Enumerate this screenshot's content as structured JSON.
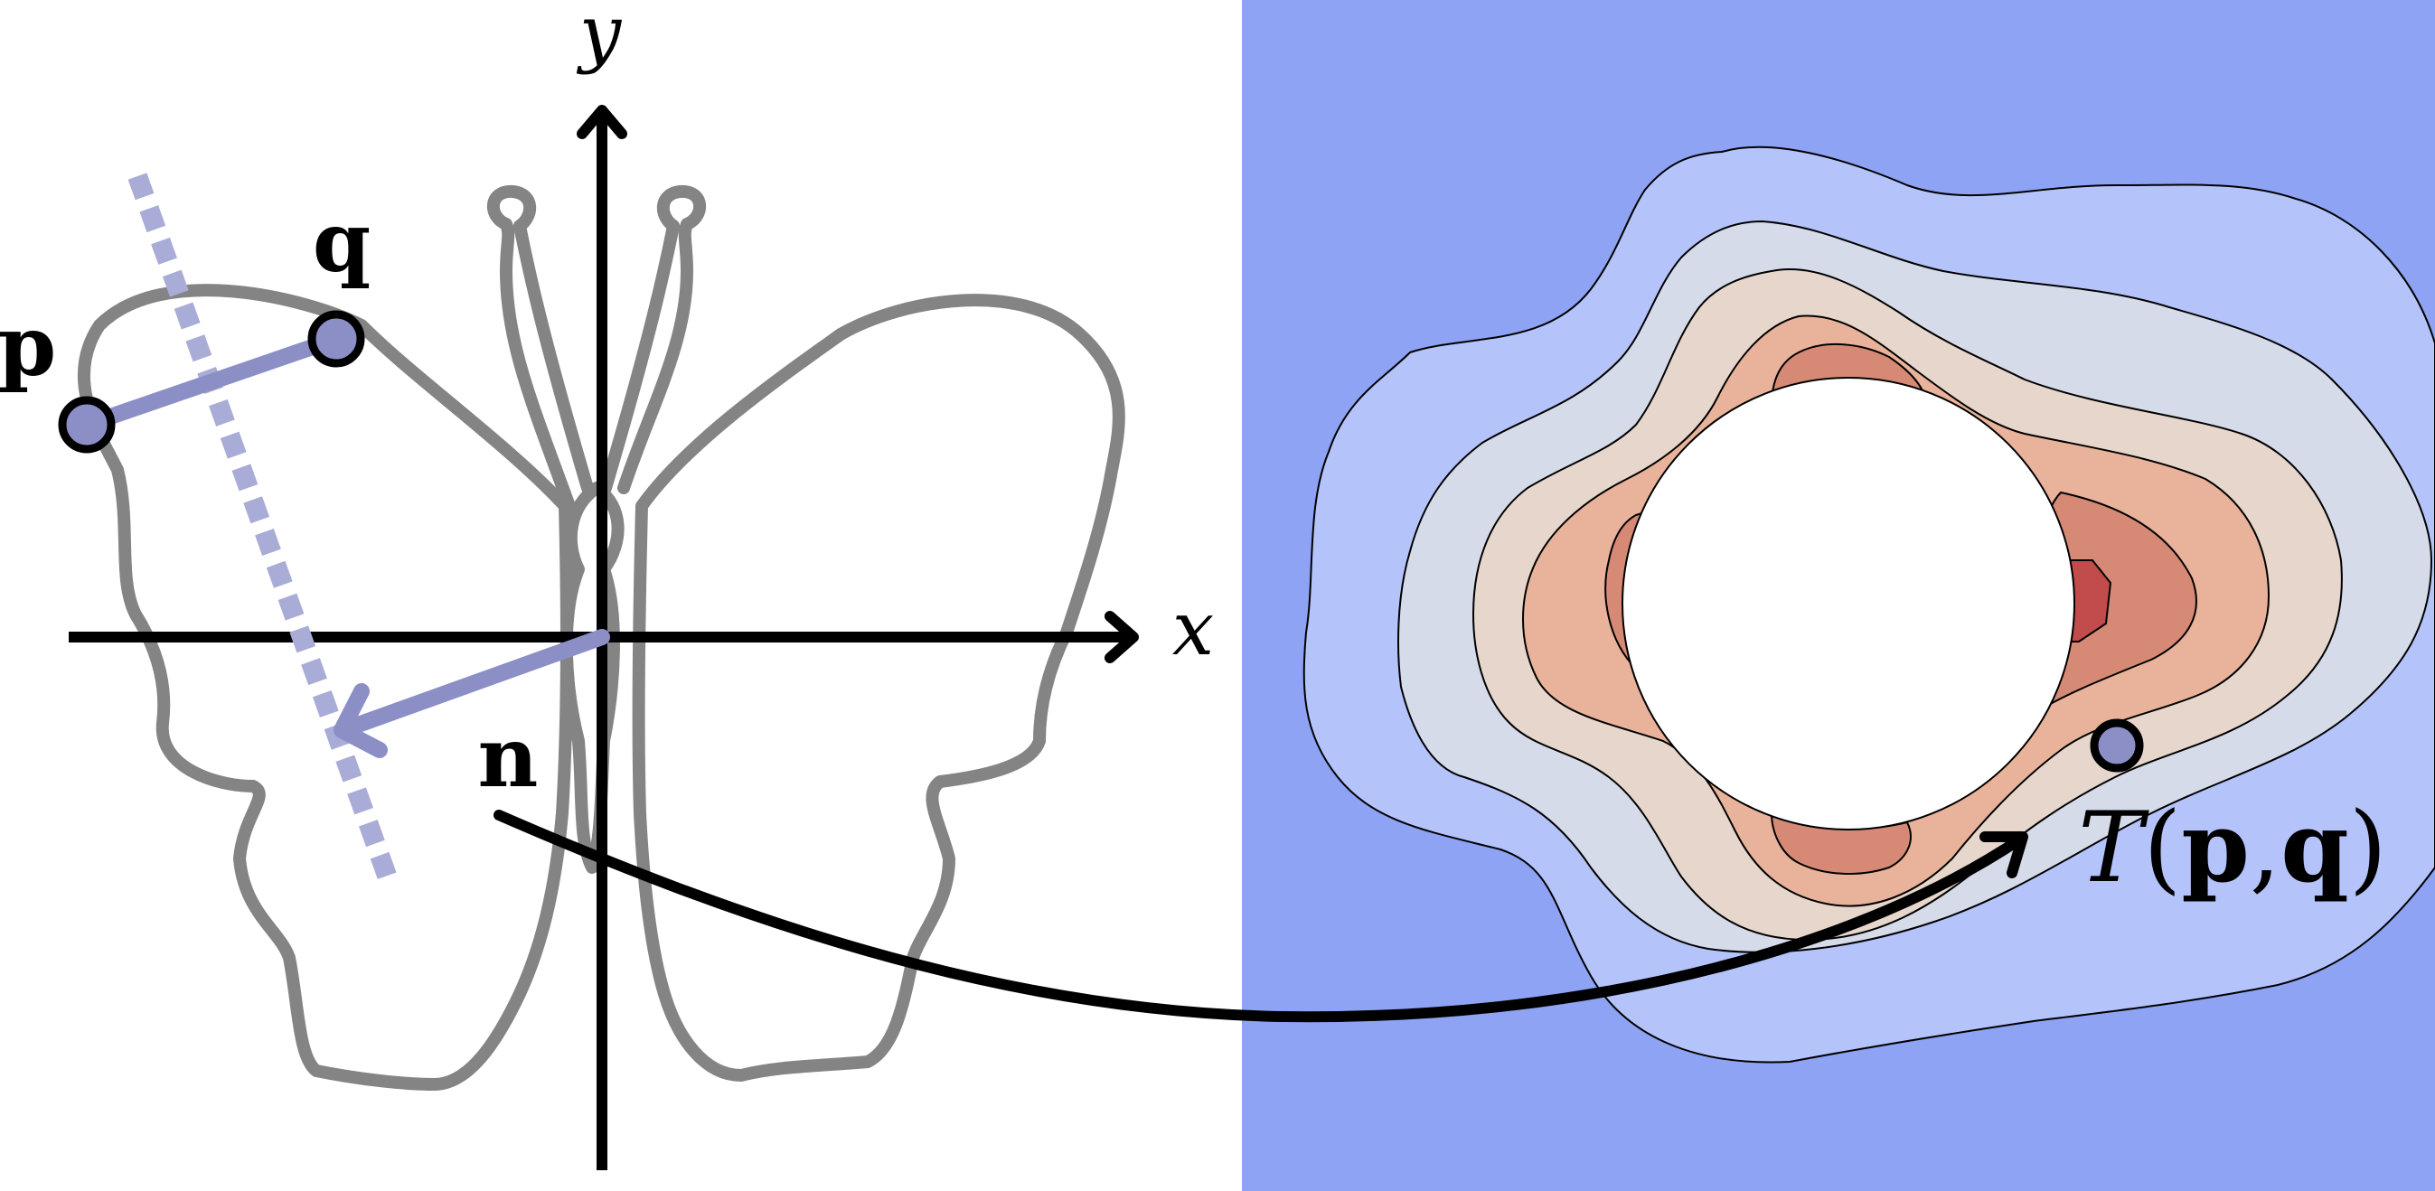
{
  "labels": {
    "y_axis": "y",
    "x_axis": "x",
    "point_p": "p",
    "point_q": "q",
    "normal_n": "n",
    "T_func": "T",
    "T_open": "(",
    "T_p": "p",
    "T_comma": ",",
    "T_q": "q",
    "T_close": ")"
  },
  "colors": {
    "outline": "#848484",
    "accent": "#8b8fc6",
    "accent_light": "#a9acd6",
    "axis": "#000000",
    "field_bg": "#8ea3f3",
    "level_1": "#b4c4fb",
    "level_2": "#d6dbe9",
    "level_3": "#e6d6cb",
    "level_4": "#e9b39b",
    "level_5": "#d68a75",
    "level_6": "#c24c4c",
    "hole": "#ffffff"
  }
}
